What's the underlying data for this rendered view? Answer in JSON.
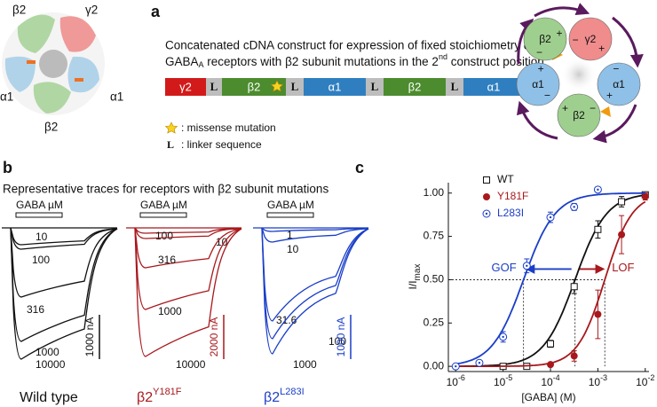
{
  "panel_a": {
    "letter": "a",
    "title_line1": "Concatenated cDNA construct for expression of fixed stoichiometry α1β2γ2",
    "title_line2": [
      "GABA",
      "A",
      " receptors with β2 subunit mutations in the 2",
      "nd",
      " construct position"
    ],
    "construct": [
      "γ2",
      "L",
      "β2",
      "L",
      "α1",
      "L",
      "β2",
      "L",
      "α1"
    ],
    "legend": {
      "mutation": ": missense mutation",
      "linker_symbol": "L",
      "linker": ": linker sequence"
    },
    "structure_labels": [
      "β2",
      "γ2",
      "α1",
      "α1",
      "β2"
    ],
    "pentamer": [
      {
        "label": "β2",
        "signs": [
          "+",
          "−"
        ]
      },
      {
        "label": "γ2",
        "signs": [
          "+",
          "−"
        ]
      },
      {
        "label": "α1",
        "signs": [
          "+",
          "−"
        ]
      },
      {
        "label": "β2",
        "signs": [
          "+",
          "−"
        ]
      },
      {
        "label": "α1",
        "signs": [
          "+",
          "−"
        ]
      }
    ]
  },
  "panel_b": {
    "letter": "b",
    "title": "Representative traces for receptors with β2 subunit mutations",
    "groups": [
      {
        "stimulus": "GABA µM",
        "traces": [
          10,
          100,
          316,
          1000,
          10000
        ],
        "scale": "1000 nA",
        "name": [
          "Wild type"
        ]
      },
      {
        "stimulus": "GABA µM",
        "traces": [
          100,
          10,
          316,
          1000,
          10000
        ],
        "scale": "2000 nA",
        "name": [
          "β2",
          "Y181F"
        ]
      },
      {
        "stimulus": "GABA µM",
        "traces": [
          1,
          10,
          31.6,
          100,
          1000
        ],
        "scale": "1000 nA",
        "name": [
          "β2",
          "L283I"
        ]
      }
    ]
  },
  "chart_data": {
    "type": "scatter",
    "letter": "c",
    "x_label": "[GABA] (M)",
    "y_label": [
      "I/I",
      "max"
    ],
    "x": [
      1e-06,
      3.16e-06,
      1e-05,
      3.16e-05,
      0.0001,
      0.000316,
      0.001,
      0.00316,
      0.01
    ],
    "series": [
      {
        "name": "WT",
        "color": "#111111",
        "marker": "square-open",
        "values": [
          null,
          null,
          0.0,
          0.0,
          0.13,
          0.46,
          0.79,
          0.95,
          0.99
        ],
        "errors": [
          null,
          null,
          0.01,
          0.01,
          0.02,
          0.04,
          0.05,
          0.03,
          0.01
        ],
        "ec50": 0.00033,
        "hill": 1.3
      },
      {
        "name": "Y181F",
        "color": "#a8181c",
        "marker": "circle-filled",
        "values": [
          null,
          null,
          null,
          null,
          0.01,
          0.06,
          0.3,
          0.76,
          0.98
        ],
        "errors": [
          null,
          null,
          null,
          null,
          0.01,
          0.03,
          0.14,
          0.11,
          0.02
        ],
        "ec50": 0.0014,
        "hill": 1.5
      },
      {
        "name": "L283I",
        "color": "#1a3ec8",
        "marker": "circle-dot",
        "values": [
          0.0,
          0.02,
          0.17,
          0.58,
          0.86,
          0.92,
          1.02,
          null,
          null
        ],
        "errors": [
          0.01,
          0.01,
          0.03,
          0.04,
          0.03,
          0.02,
          0.01,
          null,
          null
        ],
        "ec50": 2.7e-05,
        "hill": 1.3
      }
    ],
    "xlim": [
      7e-07,
      0.012
    ],
    "log_x": true,
    "xticks": [
      {
        "value": 1e-06,
        "label": [
          "10",
          "-6"
        ]
      },
      {
        "value": 1e-05,
        "label": [
          "10",
          "-5"
        ]
      },
      {
        "value": 0.0001,
        "label": [
          "10",
          "-4"
        ]
      },
      {
        "value": 0.001,
        "label": [
          "10",
          "-3"
        ]
      },
      {
        "value": 0.01,
        "label": [
          "10",
          "-2"
        ]
      }
    ],
    "ylim": [
      -0.03,
      1.06
    ],
    "yticks": [
      {
        "value": 0,
        "label": "0.00"
      },
      {
        "value": 0.25,
        "label": "0.25"
      },
      {
        "value": 0.5,
        "label": "0.50"
      },
      {
        "value": 0.75,
        "label": "0.75"
      },
      {
        "value": 1,
        "label": "1.00"
      }
    ],
    "annotations": [
      {
        "text": "GOF",
        "color": "#1a3ec8"
      },
      {
        "text": "LOF",
        "color": "#a8181c"
      }
    ]
  }
}
